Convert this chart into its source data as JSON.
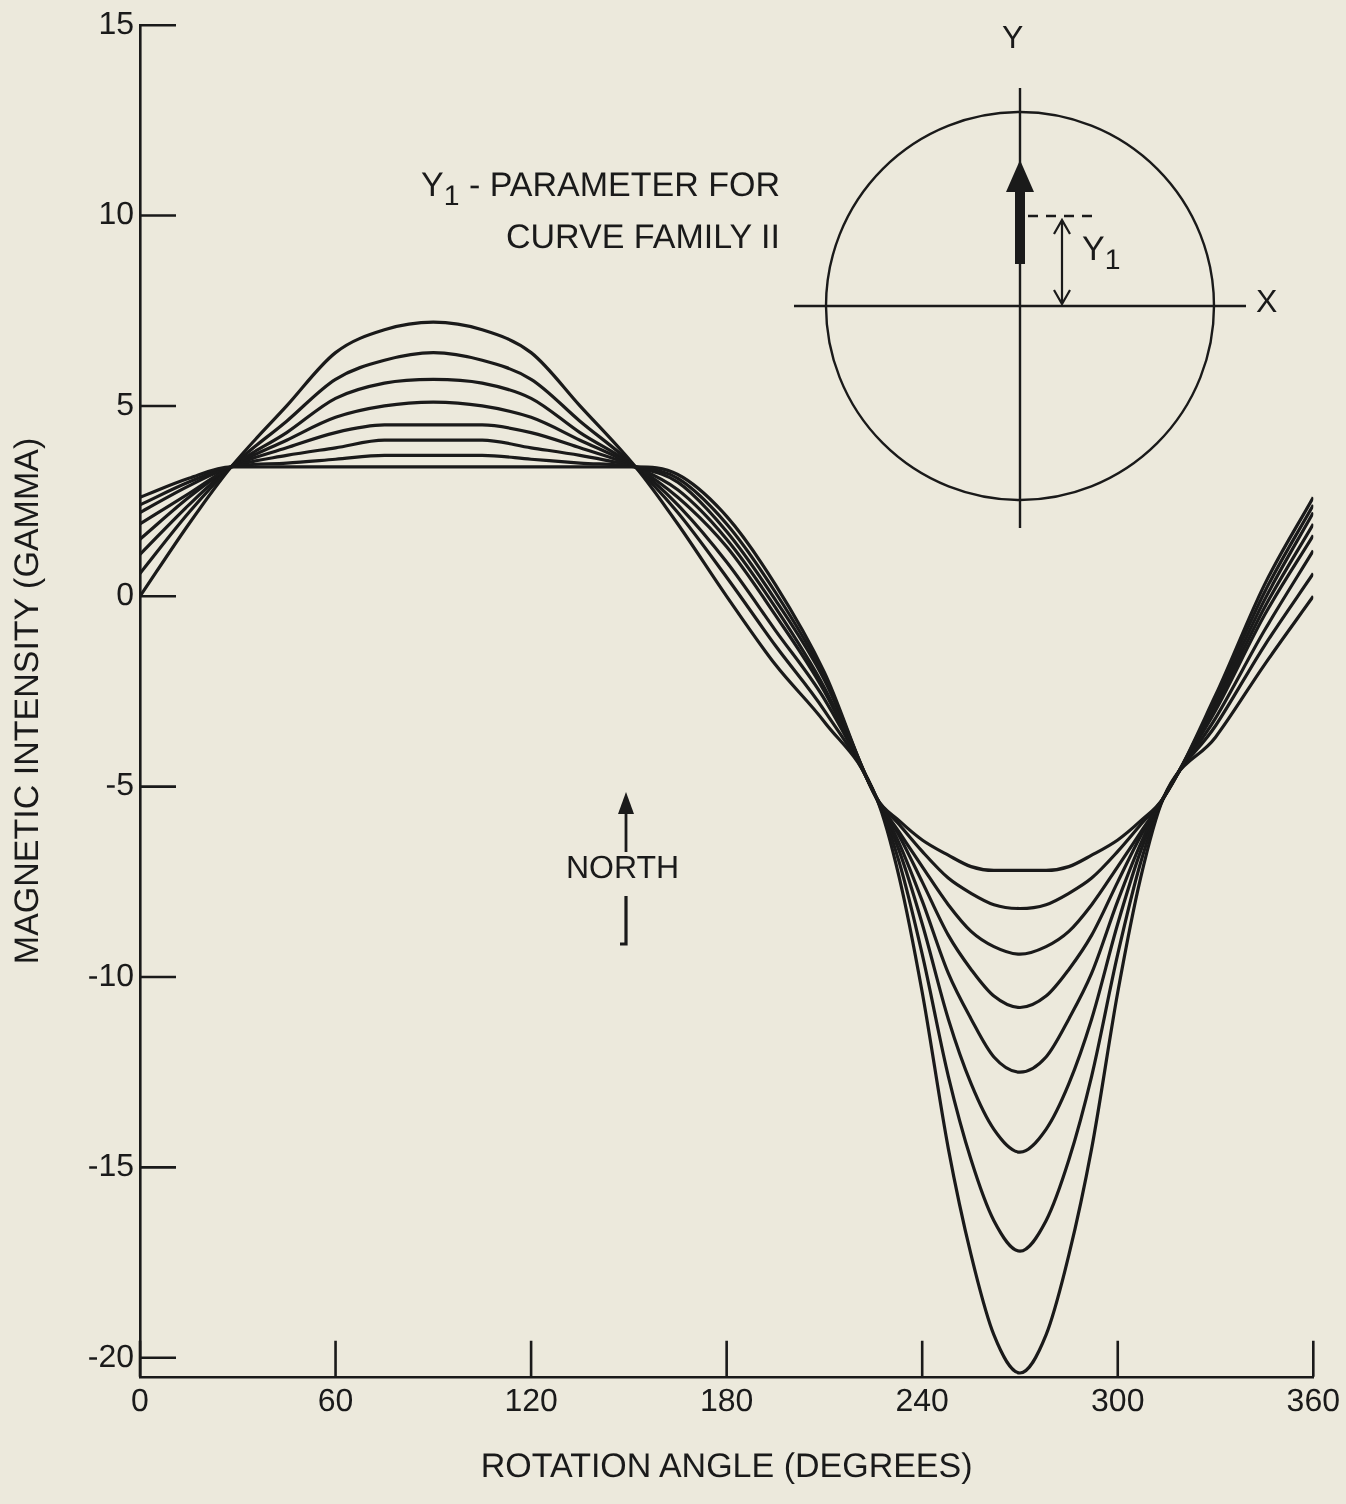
{
  "chart_data": {
    "type": "line",
    "xlabel": "ROTATION ANGLE (DEGREES)",
    "ylabel": "MAGNETIC INTENSITY (GAMMA)",
    "x": [
      0,
      15,
      28,
      45,
      60,
      75,
      90,
      105,
      120,
      135,
      152,
      165,
      180,
      195,
      210,
      226,
      233,
      240,
      248,
      255,
      262,
      270,
      278,
      285,
      292,
      300,
      307,
      314,
      330,
      345,
      360
    ],
    "series": [
      {
        "color": "#1a1a1a",
        "values": [
          2.6,
          3.1,
          3.4,
          3.4,
          3.4,
          3.4,
          3.4,
          3.4,
          3.4,
          3.4,
          3.4,
          3.2,
          2.1,
          0.3,
          -2.0,
          -5.3,
          -5.9,
          -6.4,
          -6.8,
          -7.1,
          -7.2,
          -7.2,
          -7.2,
          -7.1,
          -6.8,
          -6.4,
          -5.9,
          -5.3,
          -2.6,
          0.3,
          2.6
        ]
      },
      {
        "color": "#1a1a1a",
        "values": [
          2.4,
          3.0,
          3.4,
          3.5,
          3.6,
          3.7,
          3.7,
          3.7,
          3.6,
          3.5,
          3.4,
          3.1,
          1.9,
          0.1,
          -2.1,
          -5.3,
          -6.0,
          -6.7,
          -7.4,
          -7.8,
          -8.1,
          -8.2,
          -8.1,
          -7.8,
          -7.4,
          -6.7,
          -6.0,
          -5.3,
          -2.7,
          0.1,
          2.4
        ]
      },
      {
        "color": "#1a1a1a",
        "values": [
          2.2,
          2.9,
          3.4,
          3.7,
          3.9,
          4.1,
          4.1,
          4.1,
          3.9,
          3.7,
          3.4,
          3.0,
          1.7,
          -0.1,
          -2.2,
          -5.3,
          -6.2,
          -7.1,
          -8.1,
          -8.8,
          -9.2,
          -9.4,
          -9.2,
          -8.8,
          -8.1,
          -7.1,
          -6.2,
          -5.3,
          -2.8,
          -0.1,
          2.2
        ]
      },
      {
        "color": "#1a1a1a",
        "values": [
          1.9,
          2.7,
          3.4,
          3.9,
          4.3,
          4.5,
          4.5,
          4.5,
          4.3,
          3.9,
          3.4,
          2.8,
          1.5,
          -0.3,
          -2.4,
          -5.3,
          -6.3,
          -7.5,
          -8.9,
          -9.8,
          -10.5,
          -10.8,
          -10.5,
          -9.8,
          -8.9,
          -7.5,
          -6.3,
          -5.3,
          -2.9,
          -0.3,
          1.9
        ]
      },
      {
        "color": "#1a1a1a",
        "values": [
          1.5,
          2.6,
          3.4,
          4.1,
          4.7,
          5.0,
          5.1,
          5.0,
          4.7,
          4.1,
          3.4,
          2.6,
          1.3,
          -0.5,
          -2.5,
          -5.3,
          -6.5,
          -8.0,
          -9.9,
          -11.1,
          -12.1,
          -12.5,
          -12.1,
          -11.1,
          -9.9,
          -8.0,
          -6.5,
          -5.3,
          -3.0,
          -0.5,
          1.6
        ]
      },
      {
        "color": "#1a1a1a",
        "values": [
          1.1,
          2.4,
          3.4,
          4.3,
          5.2,
          5.6,
          5.7,
          5.6,
          5.2,
          4.3,
          3.4,
          2.4,
          0.9,
          -0.9,
          -2.7,
          -5.3,
          -6.7,
          -8.6,
          -11.1,
          -12.8,
          -14.0,
          -14.6,
          -14.0,
          -12.8,
          -11.1,
          -8.6,
          -6.7,
          -5.3,
          -3.2,
          -0.9,
          1.2
        ]
      },
      {
        "color": "#1a1a1a",
        "values": [
          0.6,
          2.2,
          3.4,
          4.6,
          5.7,
          6.2,
          6.4,
          6.2,
          5.7,
          4.6,
          3.4,
          2.2,
          0.5,
          -1.3,
          -3.0,
          -5.3,
          -7.0,
          -9.4,
          -12.6,
          -14.8,
          -16.4,
          -17.2,
          -16.4,
          -14.8,
          -12.6,
          -9.4,
          -7.0,
          -5.3,
          -3.4,
          -1.3,
          0.6
        ]
      },
      {
        "color": "#1a1a1a",
        "values": [
          0,
          1.9,
          3.4,
          5.0,
          6.4,
          7.0,
          7.2,
          7.0,
          6.4,
          5.0,
          3.4,
          1.9,
          0,
          -1.8,
          -3.3,
          -5.3,
          -7.4,
          -10.4,
          -14.5,
          -17.3,
          -19.4,
          -20.4,
          -19.4,
          -17.3,
          -14.5,
          -10.4,
          -7.4,
          -5.3,
          -3.7,
          -1.8,
          0
        ]
      }
    ],
    "xlim": [
      0,
      360
    ],
    "xticks": [
      0,
      60,
      120,
      180,
      240,
      300,
      360
    ],
    "ylim": [
      -20.5,
      15
    ],
    "yticks": [
      -20,
      -15,
      -10,
      -5,
      0,
      5,
      10,
      15
    ],
    "annotations": [
      "Y$_{1}$ - PARAMETER FOR CURVE FAMILY II",
      "NORTH",
      "Y",
      "X",
      "Y$_{1}$"
    ]
  }
}
